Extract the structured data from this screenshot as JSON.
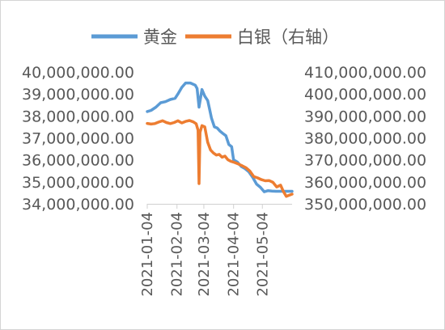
{
  "chart_data": {
    "type": "line",
    "title": "",
    "legend_position": "top",
    "grid": false,
    "x_start": "2021-01-04",
    "x_end": "2021-06-04",
    "xticks": [
      "2021-01-04",
      "2021-02-04",
      "2021-03-04",
      "2021-04-04",
      "2021-05-04"
    ],
    "y_left": {
      "range": [
        34000000,
        40000000
      ],
      "ticks": [
        34000000,
        35000000,
        36000000,
        37000000,
        38000000,
        39000000,
        40000000
      ],
      "tick_labels": [
        "34,000,000.00",
        "35,000,000.00",
        "36,000,000.00",
        "37,000,000.00",
        "38,000,000.00",
        "39,000,000.00",
        "40,000,000.00"
      ]
    },
    "y_right": {
      "range": [
        350000000,
        410000000
      ],
      "ticks": [
        350000000,
        360000000,
        370000000,
        380000000,
        390000000,
        400000000,
        410000000
      ],
      "tick_labels": [
        "350,000,000.00",
        "360,000,000.00",
        "370,000,000.00",
        "380,000,000.00",
        "390,000,000.00",
        "400,000,000.00",
        "410,000,000.00"
      ]
    },
    "series": [
      {
        "name": "黄金",
        "axis": "left",
        "color": "#5b9bd5",
        "points": [
          [
            "2021-01-04",
            38200000
          ],
          [
            "2021-01-08",
            38250000
          ],
          [
            "2021-01-13",
            38400000
          ],
          [
            "2021-01-18",
            38600000
          ],
          [
            "2021-01-23",
            38650000
          ],
          [
            "2021-01-28",
            38750000
          ],
          [
            "2021-02-02",
            38800000
          ],
          [
            "2021-02-05",
            39000000
          ],
          [
            "2021-02-09",
            39300000
          ],
          [
            "2021-02-13",
            39500000
          ],
          [
            "2021-02-18",
            39500000
          ],
          [
            "2021-02-23",
            39400000
          ],
          [
            "2021-02-25",
            39250000
          ],
          [
            "2021-02-27",
            38400000
          ],
          [
            "2021-03-02",
            39200000
          ],
          [
            "2021-03-05",
            38900000
          ],
          [
            "2021-03-08",
            38700000
          ],
          [
            "2021-03-10",
            38300000
          ],
          [
            "2021-03-12",
            37900000
          ],
          [
            "2021-03-15",
            37500000
          ],
          [
            "2021-03-18",
            37450000
          ],
          [
            "2021-03-21",
            37300000
          ],
          [
            "2021-03-24",
            37200000
          ],
          [
            "2021-03-27",
            37100000
          ],
          [
            "2021-03-30",
            36700000
          ],
          [
            "2021-04-02",
            36600000
          ],
          [
            "2021-04-04",
            36000000
          ],
          [
            "2021-04-08",
            35900000
          ],
          [
            "2021-04-12",
            35700000
          ],
          [
            "2021-04-16",
            35600000
          ],
          [
            "2021-04-20",
            35450000
          ],
          [
            "2021-04-24",
            35200000
          ],
          [
            "2021-04-28",
            34900000
          ],
          [
            "2021-05-02",
            34750000
          ],
          [
            "2021-05-06",
            34550000
          ],
          [
            "2021-05-10",
            34600000
          ],
          [
            "2021-05-14",
            34580000
          ],
          [
            "2021-05-18",
            34570000
          ],
          [
            "2021-05-25",
            34570000
          ],
          [
            "2021-06-04",
            34570000
          ]
        ]
      },
      {
        "name": "白银（右轴）",
        "axis": "right",
        "color": "#ed7d31",
        "points": [
          [
            "2021-01-04",
            386600000
          ],
          [
            "2021-01-08",
            386300000
          ],
          [
            "2021-01-12",
            386500000
          ],
          [
            "2021-01-16",
            387200000
          ],
          [
            "2021-01-20",
            387800000
          ],
          [
            "2021-01-24",
            387000000
          ],
          [
            "2021-01-28",
            386500000
          ],
          [
            "2021-02-01",
            387000000
          ],
          [
            "2021-02-05",
            387800000
          ],
          [
            "2021-02-09",
            386800000
          ],
          [
            "2021-02-13",
            387500000
          ],
          [
            "2021-02-17",
            387900000
          ],
          [
            "2021-02-21",
            387300000
          ],
          [
            "2021-02-24",
            386400000
          ],
          [
            "2021-02-26",
            383500000
          ],
          [
            "2021-02-27",
            359200000
          ],
          [
            "2021-02-28",
            382500000
          ],
          [
            "2021-03-02",
            385600000
          ],
          [
            "2021-03-05",
            385000000
          ],
          [
            "2021-03-08",
            378000000
          ],
          [
            "2021-03-11",
            374500000
          ],
          [
            "2021-03-14",
            373100000
          ],
          [
            "2021-03-17",
            372200000
          ],
          [
            "2021-03-20",
            372500000
          ],
          [
            "2021-03-23",
            371200000
          ],
          [
            "2021-03-26",
            371700000
          ],
          [
            "2021-03-29",
            370100000
          ],
          [
            "2021-04-01",
            369400000
          ],
          [
            "2021-04-05",
            368800000
          ],
          [
            "2021-04-09",
            368100000
          ],
          [
            "2021-04-13",
            367300000
          ],
          [
            "2021-04-17",
            366400000
          ],
          [
            "2021-04-21",
            364900000
          ],
          [
            "2021-04-25",
            362400000
          ],
          [
            "2021-04-29",
            361800000
          ],
          [
            "2021-05-03",
            361000000
          ],
          [
            "2021-05-07",
            360500000
          ],
          [
            "2021-05-11",
            360600000
          ],
          [
            "2021-05-15",
            359800000
          ],
          [
            "2021-05-19",
            357700000
          ],
          [
            "2021-05-23",
            358500000
          ],
          [
            "2021-05-26",
            355600000
          ],
          [
            "2021-05-29",
            353400000
          ],
          [
            "2021-06-01",
            353900000
          ],
          [
            "2021-06-04",
            354400000
          ]
        ]
      }
    ]
  }
}
